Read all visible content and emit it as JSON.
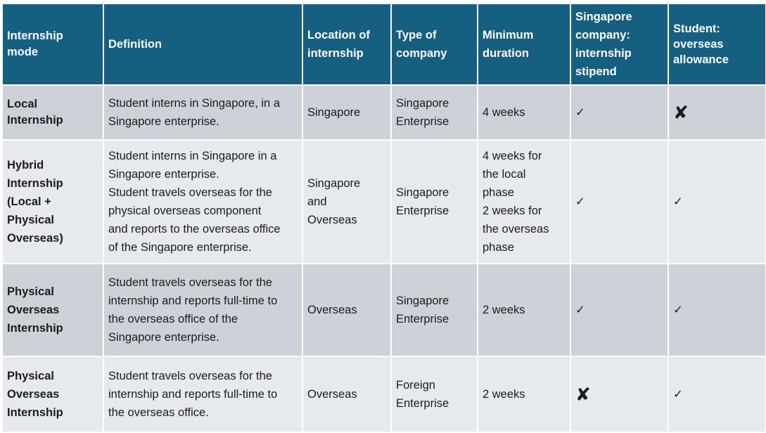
{
  "header": {
    "mode": "Internship\nmode",
    "definition": "Definition",
    "location": "Location of\ninternship",
    "company_type": "Type of\ncompany",
    "duration": "Minimum\nduration",
    "stipend": "Singapore\ncompany:\ninternship\nstipend",
    "allowance": "Student:\noverseas\nallowance"
  },
  "symbols": {
    "yes": "✓",
    "no": "✘"
  },
  "rows": [
    {
      "mode": "Local\nInternship",
      "definition": "Student interns in Singapore, in a\nSingapore enterprise.",
      "location": "Singapore",
      "company_type": "Singapore\nEnterprise",
      "duration": "4 weeks",
      "stipend": "✓",
      "allowance": "✘"
    },
    {
      "mode": "Hybrid\nInternship\n(Local +\nPhysical\nOverseas)",
      "definition": "Student interns in Singapore in a\nSingapore enterprise.\nStudent travels overseas for the\nphysical overseas component\nand reports to the overseas office\nof the Singapore enterprise.",
      "location": "Singapore\nand\nOverseas",
      "company_type": "Singapore\nEnterprise",
      "duration": "4 weeks for\nthe local\nphase\n2 weeks for\nthe overseas\nphase",
      "stipend": "✓",
      "allowance": "✓"
    },
    {
      "mode": "Physical\nOverseas\nInternship",
      "definition": "Student travels overseas for the\ninternship and reports full-time to\nthe overseas office of the\nSingapore enterprise.",
      "location": "Overseas",
      "company_type": "Singapore\nEnterprise",
      "duration": "2 weeks",
      "stipend": "✓",
      "allowance": "✓"
    },
    {
      "mode": "Physical\nOverseas\nInternship",
      "definition": "Student travels overseas for the\ninternship and reports full-time to\nthe overseas office.",
      "location": "Overseas",
      "company_type": "Foreign\nEnterprise",
      "duration": "2 weeks",
      "stipend": "✘",
      "allowance": "✓"
    }
  ],
  "colors": {
    "header_bg": "#155f80",
    "header_text": "#ffffff",
    "row_dark": "#cdd2d9",
    "row_light": "#e6e9ed"
  }
}
